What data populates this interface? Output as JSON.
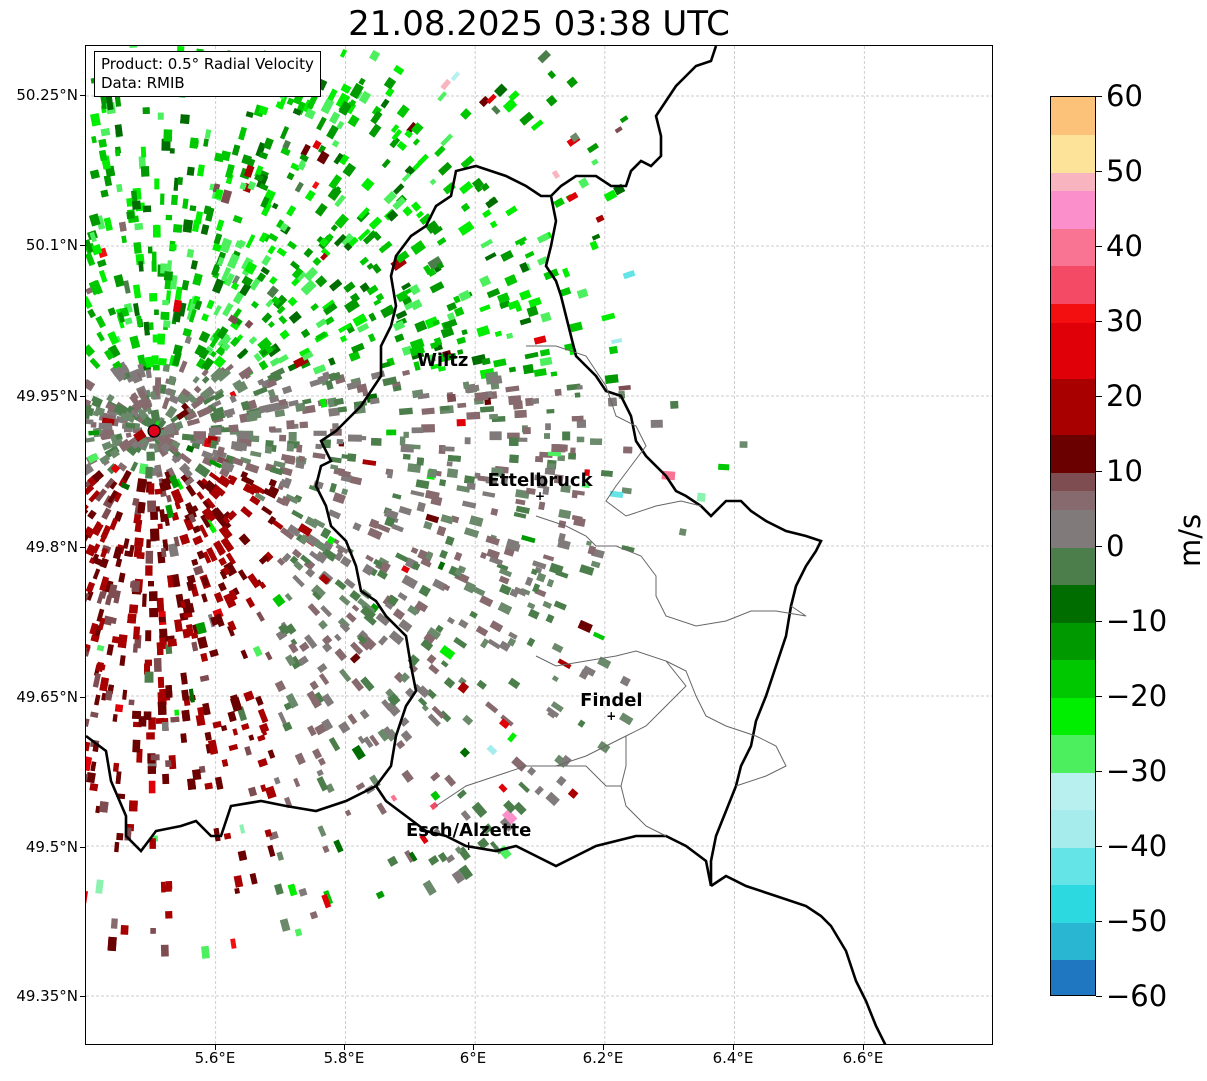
{
  "title": "21.08.2025 03:38 UTC",
  "info": {
    "product": "Product: 0.5° Radial Velocity",
    "source": "Data: RMIB"
  },
  "lat_ticks": [
    "50.25°N",
    "50.1°N",
    "49.95°N",
    "49.8°N",
    "49.65°N",
    "49.5°N",
    "49.35°N"
  ],
  "lon_ticks": [
    "5.6°E",
    "5.8°E",
    "6°E",
    "6.2°E",
    "6.4°E",
    "6.6°E"
  ],
  "cities": [
    {
      "name": "Wiltz",
      "lon": 5.95,
      "lat": 49.97,
      "marker": false
    },
    {
      "name": "Ettelbruck",
      "lon": 6.1,
      "lat": 49.85,
      "marker": true
    },
    {
      "name": "Findel",
      "lon": 6.21,
      "lat": 49.63,
      "marker": true
    },
    {
      "name": "Esch/Alzette",
      "lon": 5.99,
      "lat": 49.5,
      "marker": true
    }
  ],
  "radar_site": {
    "lon": 5.505,
    "lat": 49.915,
    "color": "#e0001b"
  },
  "colorbar": {
    "unit": "m/s",
    "min": -60,
    "max": 60,
    "tick_labels": [
      "60",
      "50",
      "40",
      "30",
      "20",
      "10",
      "0",
      "−10",
      "−20",
      "−30",
      "−40",
      "−50",
      "−60"
    ],
    "tick_values": [
      60,
      50,
      40,
      30,
      20,
      10,
      0,
      -10,
      -20,
      -30,
      -40,
      -50,
      -60
    ],
    "stops": [
      {
        "v": -60,
        "color": "#2077c1"
      },
      {
        "v": -55,
        "color": "#28b6d2"
      },
      {
        "v": -50,
        "color": "#2dd9e0"
      },
      {
        "v": -45,
        "color": "#64e4e6"
      },
      {
        "v": -40,
        "color": "#a7ecec"
      },
      {
        "v": -35,
        "color": "#b8f0ef"
      },
      {
        "v": -32,
        "color": "#8cf2b0"
      },
      {
        "v": -30,
        "color": "#4cf05f"
      },
      {
        "v": -25,
        "color": "#00ee00"
      },
      {
        "v": -20,
        "color": "#00c800"
      },
      {
        "v": -15,
        "color": "#009a00"
      },
      {
        "v": -10,
        "color": "#006d00"
      },
      {
        "v": -6,
        "color": "#4c7e4c"
      },
      {
        "v": -2,
        "color": "#6b8a6b"
      },
      {
        "v": 0,
        "color": "#807a7a"
      },
      {
        "v": 3,
        "color": "#866a6e"
      },
      {
        "v": 7,
        "color": "#7e4d52"
      },
      {
        "v": 10,
        "color": "#6a0000"
      },
      {
        "v": 15,
        "color": "#a80000"
      },
      {
        "v": 22,
        "color": "#e00008"
      },
      {
        "v": 28,
        "color": "#f30f0f"
      },
      {
        "v": 31,
        "color": "#f44a66"
      },
      {
        "v": 36,
        "color": "#f97393"
      },
      {
        "v": 41,
        "color": "#fb8fcc"
      },
      {
        "v": 46,
        "color": "#f9b5bf"
      },
      {
        "v": 50,
        "color": "#fde39a"
      },
      {
        "v": 55,
        "color": "#fdc27a"
      },
      {
        "v": 60,
        "color": "#fd9c57"
      }
    ]
  }
}
